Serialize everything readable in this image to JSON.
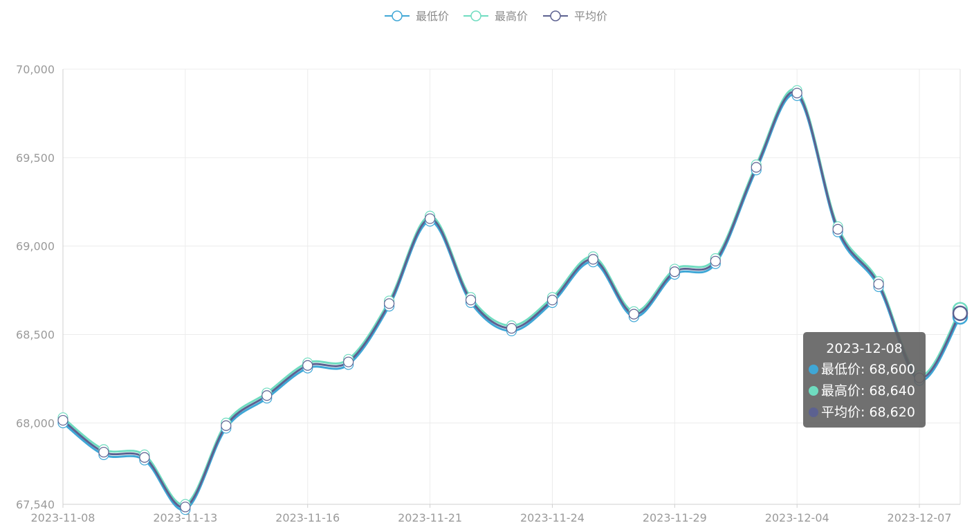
{
  "chart_data": {
    "type": "line",
    "smooth": true,
    "categories": [
      "2023-11-08",
      "2023-11-09",
      "2023-11-10",
      "2023-11-13",
      "2023-11-14",
      "2023-11-15",
      "2023-11-16",
      "2023-11-17",
      "2023-11-20",
      "2023-11-21",
      "2023-11-22",
      "2023-11-23",
      "2023-11-24",
      "2023-11-27",
      "2023-11-28",
      "2023-11-29",
      "2023-11-30",
      "2023-12-01",
      "2023-12-04",
      "2023-12-05",
      "2023-12-06",
      "2023-12-07",
      "2023-12-08"
    ],
    "x_tick_labels": [
      "2023-11-08",
      "2023-11-13",
      "2023-11-16",
      "2023-11-21",
      "2023-11-24",
      "2023-11-29",
      "2023-12-04",
      "2023-12-07"
    ],
    "series": [
      {
        "name": "最低价",
        "color": "#3fa7d6",
        "values": [
          68000,
          67820,
          67790,
          67510,
          67970,
          68140,
          68310,
          68330,
          68660,
          69140,
          68680,
          68520,
          68680,
          68910,
          68600,
          68840,
          68900,
          69430,
          69850,
          69080,
          68770,
          68240,
          68600
        ]
      },
      {
        "name": "最高价",
        "color": "#6fdcc0",
        "values": [
          68030,
          67850,
          67820,
          67540,
          68000,
          68170,
          68340,
          68360,
          68690,
          69170,
          68710,
          68550,
          68710,
          68940,
          68630,
          68870,
          68930,
          69460,
          69880,
          69110,
          68800,
          68270,
          68640
        ]
      },
      {
        "name": "平均价",
        "color": "#5c6190",
        "values": [
          68015,
          67835,
          67805,
          67525,
          67985,
          68155,
          68325,
          68345,
          68675,
          69155,
          68695,
          68535,
          68695,
          68925,
          68615,
          68855,
          68915,
          69445,
          69865,
          69095,
          68785,
          68255,
          68620
        ]
      }
    ],
    "y_ticks": [
      "70,000",
      "69,500",
      "69,000",
      "68,500",
      "68,000",
      "67,540"
    ],
    "y_tick_values": [
      70000,
      69500,
      69000,
      68500,
      68000,
      67540
    ],
    "ylim": [
      67540,
      70000
    ],
    "title": "",
    "xlabel": "",
    "ylabel": "",
    "grid": true,
    "legend_position": "top-center",
    "tooltip": {
      "title": "2023-12-08",
      "rows": [
        {
          "label": "最低价: 68,600",
          "color": "#3fa7d6"
        },
        {
          "label": "最高价: 68,640",
          "color": "#6fdcc0"
        },
        {
          "label": "平均价: 68,620",
          "color": "#5c6190"
        }
      ]
    }
  }
}
